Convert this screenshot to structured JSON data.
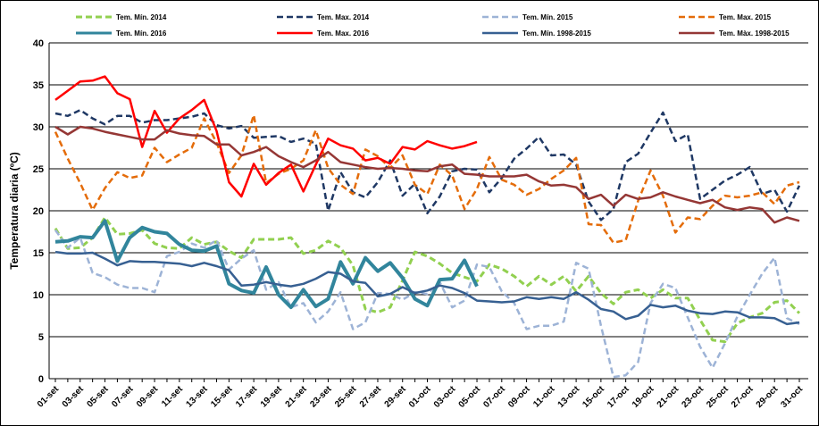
{
  "chart_data": {
    "type": "line",
    "ylabel": "Temperatura diaria (ºC)",
    "ylim": [
      0,
      40
    ],
    "yticks": [
      0,
      5,
      10,
      15,
      20,
      25,
      30,
      35,
      40
    ],
    "grid": true,
    "categories": [
      "01-set",
      null,
      "03-set",
      null,
      "05-set",
      null,
      "07-set",
      null,
      "09-set",
      null,
      "11-set",
      null,
      "13-set",
      null,
      "15-set",
      null,
      "17-set",
      null,
      "19-set",
      null,
      "21-set",
      null,
      "23-set",
      null,
      "25-set",
      null,
      "27-set",
      null,
      "29-set",
      null,
      "01-oct",
      null,
      "03-oct",
      null,
      "05-oct",
      null,
      "07-oct",
      null,
      "09-oct",
      null,
      "11-oct",
      null,
      "13-oct",
      null,
      "15-oct",
      null,
      "17-oct",
      null,
      "19-oct",
      null,
      "21-oct",
      null,
      "23-oct",
      null,
      "25-oct",
      null,
      "27-oct",
      null,
      "29-oct",
      null,
      "31-oct"
    ],
    "series": [
      {
        "name": "Tem. Mín. 2014",
        "color": "#92d050",
        "dash": true,
        "width": 3,
        "values": [
          17.9,
          15.5,
          15.6,
          16.8,
          19.2,
          17.2,
          17.3,
          17.7,
          16.1,
          15.6,
          15.5,
          16.8,
          16,
          16.3,
          15.2,
          14.4,
          16.6,
          16.6,
          16.6,
          16.8,
          14.9,
          15.3,
          16.4,
          15.6,
          13.5,
          8.3,
          7.9,
          8.5,
          11.7,
          15.1,
          14.6,
          13.7,
          12.6,
          12.1,
          11.6,
          13.6,
          13.1,
          12.2,
          11,
          12.2,
          11.2,
          12.2,
          10.4,
          12.2,
          10.2,
          8.9,
          10.3,
          10.6,
          9.6,
          10.6,
          9.6,
          9.6,
          7,
          4.6,
          4.4,
          6.6,
          7.3,
          7.8,
          9.1,
          9.3,
          7.8
        ]
      },
      {
        "name": "Tem. Max. 2014",
        "color": "#1f3864",
        "dash": true,
        "width": 2.5,
        "values": [
          31.6,
          31.3,
          32,
          31,
          30.3,
          31.3,
          31.3,
          30.5,
          30.8,
          30.8,
          31,
          31.2,
          31.6,
          30.2,
          29.8,
          30.1,
          28.7,
          28.8,
          28.9,
          28.2,
          28.6,
          28,
          20,
          24.6,
          22.2,
          21.6,
          23.4,
          26,
          21.8,
          23.2,
          19.7,
          21.7,
          24.7,
          25,
          24.9,
          22.2,
          23.9,
          26.2,
          27.4,
          28.8,
          26.6,
          26.7,
          25.5,
          21.1,
          18.9,
          20.2,
          25.8,
          26.8,
          29.3,
          31.7,
          28.3,
          29.1,
          21.4,
          22.5,
          23.6,
          24.3,
          25.2,
          22,
          22.5,
          19.9,
          23
        ]
      },
      {
        "name": "Tem. Mín. 2015",
        "color": "#9db3d6",
        "dash": true,
        "width": 2.5,
        "values": [
          17.7,
          15.6,
          16.8,
          12.6,
          12.1,
          11.2,
          10.8,
          10.8,
          10.3,
          14.6,
          15.1,
          16.1,
          15.6,
          16.5,
          13,
          14.3,
          15.3,
          10.6,
          11.5,
          8.5,
          9,
          6.7,
          8,
          10.3,
          5.9,
          6.7,
          10.2,
          10.1,
          9.4,
          10.3,
          10.1,
          11.5,
          8.5,
          9.3,
          13.6,
          13.3,
          10.4,
          9,
          5.9,
          6.3,
          6.3,
          6.8,
          13.8,
          13.1,
          6.3,
          0.2,
          0.4,
          2,
          9,
          11.3,
          10.8,
          7.3,
          3.8,
          1.3,
          4.2,
          7.4,
          10,
          12.5,
          14.4,
          7.2,
          6.5
        ]
      },
      {
        "name": "Tem. Max. 2015",
        "color": "#e46c0a",
        "dash": true,
        "width": 2.5,
        "values": [
          29.4,
          26.2,
          23.3,
          20.1,
          22.7,
          24.6,
          23.9,
          24.2,
          27.5,
          25.8,
          26.7,
          27.5,
          31,
          28.1,
          24.5,
          26.6,
          31.4,
          23.3,
          24.4,
          25,
          26,
          29.6,
          25.1,
          23.1,
          22,
          27.3,
          26.5,
          25.1,
          26.6,
          23.1,
          22,
          25.5,
          24.2,
          20.2,
          22.6,
          26.4,
          23.7,
          23.1,
          21.9,
          22.6,
          23.8,
          24.8,
          26.3,
          18.4,
          18.3,
          16.2,
          16.5,
          21.2,
          24.8,
          21.8,
          17.4,
          19.2,
          19,
          20.6,
          21.8,
          21.6,
          21.8,
          22.2,
          20.8,
          23,
          23.4
        ]
      },
      {
        "name": "Tem. Mín. 2016",
        "color": "#31859c",
        "dash": false,
        "width": 4,
        "values": [
          16.3,
          16.4,
          16.9,
          16.8,
          18.8,
          14,
          16.8,
          18,
          17.5,
          17.3,
          16,
          15.3,
          15.2,
          15.8,
          11.3,
          10.5,
          10.2,
          13.3,
          10,
          8.5,
          10.6,
          8.6,
          9.5,
          13.9,
          11.3,
          14.4,
          12.8,
          13.8,
          12,
          9.5,
          8.7,
          11.8,
          11.9,
          14.1,
          11,
          null,
          null,
          null,
          null,
          null,
          null,
          null,
          null,
          null,
          null,
          null,
          null,
          null,
          null,
          null,
          null,
          null,
          null,
          null,
          null,
          null,
          null,
          null,
          null,
          null,
          null
        ]
      },
      {
        "name": "Tem. Max. 2016",
        "color": "#ff0000",
        "dash": false,
        "width": 2.5,
        "values": [
          33.2,
          34.3,
          35.4,
          35.5,
          36,
          34,
          33.3,
          27.6,
          31.9,
          29.3,
          31,
          32,
          33.2,
          29.5,
          23.4,
          21.7,
          25.6,
          23.1,
          24.5,
          25.5,
          22.3,
          25.5,
          28.6,
          27.8,
          27.4,
          26,
          26.3,
          25.6,
          27.6,
          27.3,
          28.3,
          27.8,
          27.4,
          27.7,
          28.2,
          null,
          null,
          null,
          null,
          null,
          null,
          null,
          null,
          null,
          null,
          null,
          null,
          null,
          null,
          null,
          null,
          null,
          null,
          null,
          null,
          null,
          null,
          null,
          null,
          null,
          null
        ]
      },
      {
        "name": "Tem. Mín. 1998-2015",
        "color": "#376092",
        "dash": false,
        "width": 2.5,
        "values": [
          15.1,
          14.9,
          14.9,
          15,
          14.3,
          13.5,
          14,
          13.9,
          13.9,
          13.8,
          13.7,
          13.4,
          13.8,
          13.4,
          12.9,
          11.1,
          11.2,
          11.5,
          11.2,
          11,
          11.3,
          11.9,
          12.7,
          12.5,
          11.6,
          11.4,
          9.8,
          10.1,
          10.9,
          10.2,
          10.5,
          11.1,
          10.8,
          10.2,
          9.3,
          9.2,
          9.1,
          9.2,
          9.7,
          9.5,
          9.7,
          9.5,
          10.3,
          9.4,
          8.3,
          8,
          7.1,
          7.5,
          8.8,
          8.5,
          8.7,
          8.1,
          7.8,
          7.7,
          8,
          7.9,
          7.3,
          7.3,
          7.2,
          6.5,
          6.7
        ]
      },
      {
        "name": "Tem. Màx. 1998-2015",
        "color": "#953735",
        "dash": false,
        "width": 2.5,
        "values": [
          30,
          29.1,
          30,
          29.8,
          29.4,
          29.1,
          28.8,
          28.5,
          28.5,
          29.6,
          29.2,
          29,
          28.9,
          27.9,
          27.9,
          26.6,
          27,
          27.6,
          26.5,
          25.8,
          25.2,
          26,
          27,
          25.8,
          25.5,
          25.2,
          25,
          25.1,
          25,
          24.8,
          24.7,
          25.3,
          25.5,
          24.4,
          24.3,
          24.1,
          24.1,
          24.1,
          24.3,
          23.5,
          23,
          23.1,
          22.8,
          21.4,
          21.9,
          20.6,
          21.9,
          21.4,
          21.6,
          22.2,
          21.7,
          21.3,
          20.9,
          21.3,
          20.4,
          20.1,
          20.4,
          20.2,
          18.6,
          19.2,
          18.8
        ]
      }
    ]
  }
}
